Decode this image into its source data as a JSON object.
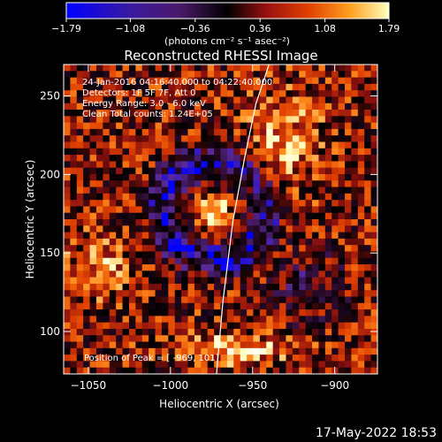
{
  "chart_data": {
    "type": "heatmap",
    "title": "Reconstructed RHESSI Image",
    "xlabel": "Heliocentric X (arcsec)",
    "ylabel": "Heliocentric Y (arcsec)",
    "xlim": [
      -1065,
      -874
    ],
    "ylim": [
      73,
      270
    ],
    "x_ticks": [
      -1050,
      -1000,
      -950,
      -900
    ],
    "x_tick_labels": [
      "−1050",
      "−1000",
      "−950",
      "−900"
    ],
    "y_ticks": [
      100,
      150,
      200,
      250
    ],
    "y_tick_labels": [
      "100",
      "150",
      "200",
      "250"
    ],
    "colorbar": {
      "min": -1.79,
      "max": 1.79,
      "tick_values": [
        -1.79,
        -1.08,
        -0.36,
        0.36,
        1.08,
        1.79
      ],
      "tick_labels": [
        "−1.79",
        "−1.08",
        "−0.36",
        "0.36",
        "1.08",
        "1.79"
      ],
      "units": "(photons cm⁻² s⁻¹ asec⁻²)"
    },
    "annotations": [
      "24-Jan-2016 04:16:40.000 to 04:22:40.000",
      "Detectors: 1F 5F 7F, Att 0",
      "Energy Range: 3.0 - 6.0 keV",
      "Clean    Total counts: 1.24E+05"
    ],
    "peak_label": "Position of Peak = [ -969, 101]",
    "limb_curve": {
      "x": [
        -972,
        -968,
        -962,
        -955,
        -948,
        -940
      ],
      "y": [
        73,
        120,
        170,
        210,
        245,
        270
      ]
    },
    "grid": false,
    "legend": "none",
    "colormap": [
      "#0000ff",
      "#5a2a9a",
      "#2a0a2a",
      "#000000",
      "#8a1010",
      "#e04000",
      "#ff9020",
      "#ffffc0",
      "#ffffff"
    ]
  },
  "footer": {
    "date_stamp": "17-May-2022 18:53"
  }
}
